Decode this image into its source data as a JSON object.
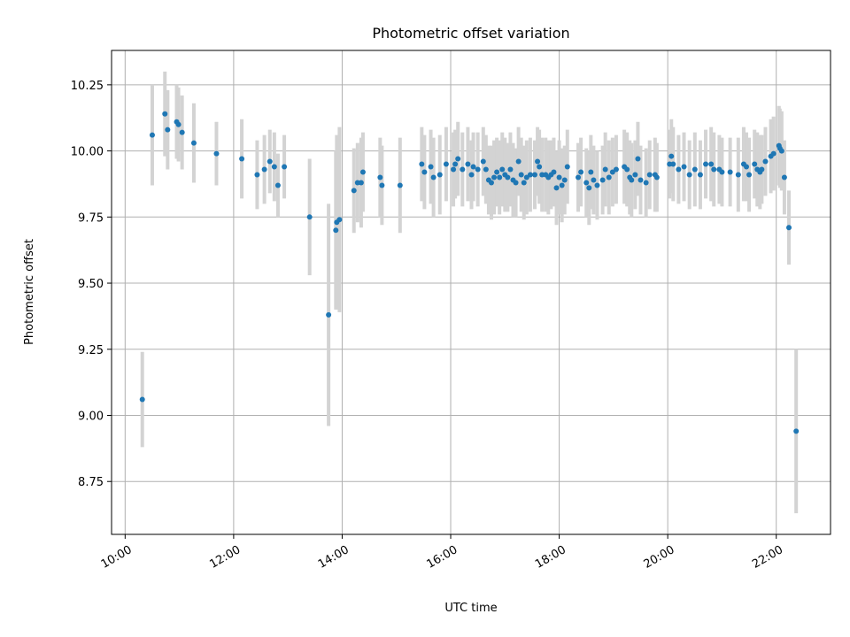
{
  "chart_data": {
    "type": "scatter",
    "title": "Photometric offset variation",
    "xlabel": "UTC time",
    "ylabel": "Photometric offset",
    "x_axis": {
      "kind": "time",
      "range_hours": [
        9.75,
        23.0
      ],
      "ticks": [
        {
          "h": 10,
          "label": "10:00"
        },
        {
          "h": 12,
          "label": "12:00"
        },
        {
          "h": 14,
          "label": "14:00"
        },
        {
          "h": 16,
          "label": "16:00"
        },
        {
          "h": 18,
          "label": "18:00"
        },
        {
          "h": 20,
          "label": "20:00"
        },
        {
          "h": 22,
          "label": "22:00"
        }
      ]
    },
    "y_axis": {
      "range": [
        8.55,
        10.38
      ],
      "ticks": [
        {
          "v": 8.75,
          "label": "8.75"
        },
        {
          "v": 9.0,
          "label": "9.00"
        },
        {
          "v": 9.25,
          "label": "9.25"
        },
        {
          "v": 9.5,
          "label": "9.50"
        },
        {
          "v": 9.75,
          "label": "9.75"
        },
        {
          "v": 10.0,
          "label": "10.00"
        },
        {
          "v": 10.25,
          "label": "10.25"
        }
      ]
    },
    "grid": true,
    "colors": {
      "point": "#1f77b4",
      "errorbar": "#d3d3d3",
      "grid": "#b0b0b0"
    },
    "series": [
      {
        "points": [
          [
            "10:19",
            9.06,
            0.18
          ],
          [
            "10:30",
            10.06,
            0.19
          ],
          [
            "10:44",
            10.14,
            0.16
          ],
          [
            "10:47",
            10.08,
            0.15
          ],
          [
            "10:57",
            10.11,
            0.14
          ],
          [
            "10:59",
            10.1,
            0.14
          ],
          [
            "11:03",
            10.07,
            0.14
          ],
          [
            "11:16",
            10.03,
            0.15
          ],
          [
            "11:41",
            9.99,
            0.12
          ],
          [
            "12:09",
            9.97,
            0.15
          ],
          [
            "12:26",
            9.91,
            0.13
          ],
          [
            "12:34",
            9.93,
            0.13
          ],
          [
            "12:40",
            9.96,
            0.12
          ],
          [
            "12:45",
            9.94,
            0.13
          ],
          [
            "12:49",
            9.87,
            0.12
          ],
          [
            "12:56",
            9.94,
            0.12
          ],
          [
            "13:24",
            9.75,
            0.22
          ],
          [
            "13:45",
            9.38,
            0.42
          ],
          [
            "13:53",
            9.7,
            0.3
          ],
          [
            "13:54",
            9.73,
            0.33
          ],
          [
            "13:57",
            9.74,
            0.35
          ],
          [
            "14:13",
            9.85,
            0.16
          ],
          [
            "14:17",
            9.88,
            0.15
          ],
          [
            "14:21",
            9.88,
            0.17
          ],
          [
            "14:23",
            9.92,
            0.15
          ],
          [
            "14:42",
            9.9,
            0.15
          ],
          [
            "14:44",
            9.87,
            0.15
          ],
          [
            "15:04",
            9.87,
            0.18
          ],
          [
            "15:28",
            9.95,
            0.14
          ],
          [
            "15:31",
            9.92,
            0.14
          ],
          [
            "15:38",
            9.94,
            0.14
          ],
          [
            "15:41",
            9.9,
            0.15
          ],
          [
            "15:48",
            9.91,
            0.15
          ],
          [
            "15:55",
            9.95,
            0.14
          ],
          [
            "16:03",
            9.93,
            0.14
          ],
          [
            "16:05",
            9.95,
            0.13
          ],
          [
            "16:08",
            9.97,
            0.14
          ],
          [
            "16:13",
            9.93,
            0.14
          ],
          [
            "16:19",
            9.95,
            0.14
          ],
          [
            "16:23",
            9.91,
            0.13
          ],
          [
            "16:25",
            9.94,
            0.13
          ],
          [
            "16:30",
            9.93,
            0.14
          ],
          [
            "16:36",
            9.96,
            0.13
          ],
          [
            "16:39",
            9.93,
            0.13
          ],
          [
            "16:42",
            9.89,
            0.13
          ],
          [
            "16:45",
            9.88,
            0.14
          ],
          [
            "16:48",
            9.9,
            0.14
          ],
          [
            "16:51",
            9.92,
            0.13
          ],
          [
            "16:54",
            9.9,
            0.14
          ],
          [
            "16:57",
            9.93,
            0.14
          ],
          [
            "17:00",
            9.91,
            0.14
          ],
          [
            "17:03",
            9.9,
            0.13
          ],
          [
            "17:06",
            9.93,
            0.14
          ],
          [
            "17:09",
            9.89,
            0.14
          ],
          [
            "17:12",
            9.88,
            0.13
          ],
          [
            "17:15",
            9.96,
            0.13
          ],
          [
            "17:18",
            9.91,
            0.14
          ],
          [
            "17:21",
            9.88,
            0.14
          ],
          [
            "17:24",
            9.9,
            0.14
          ],
          [
            "17:28",
            9.91,
            0.14
          ],
          [
            "17:33",
            9.91,
            0.13
          ],
          [
            "17:36",
            9.96,
            0.13
          ],
          [
            "17:38",
            9.94,
            0.14
          ],
          [
            "17:41",
            9.91,
            0.14
          ],
          [
            "17:45",
            9.91,
            0.14
          ],
          [
            "17:48",
            9.9,
            0.14
          ],
          [
            "17:51",
            9.91,
            0.13
          ],
          [
            "17:54",
            9.92,
            0.13
          ],
          [
            "17:57",
            9.86,
            0.14
          ],
          [
            "18:00",
            9.9,
            0.14
          ],
          [
            "18:03",
            9.87,
            0.14
          ],
          [
            "18:06",
            9.89,
            0.13
          ],
          [
            "18:09",
            9.94,
            0.14
          ],
          [
            "18:21",
            9.9,
            0.13
          ],
          [
            "18:24",
            9.92,
            0.13
          ],
          [
            "18:30",
            9.88,
            0.13
          ],
          [
            "18:33",
            9.86,
            0.14
          ],
          [
            "18:35",
            9.92,
            0.14
          ],
          [
            "18:38",
            9.89,
            0.13
          ],
          [
            "18:42",
            9.87,
            0.13
          ],
          [
            "18:48",
            9.89,
            0.13
          ],
          [
            "18:51",
            9.93,
            0.14
          ],
          [
            "18:55",
            9.9,
            0.14
          ],
          [
            "18:59",
            9.92,
            0.13
          ],
          [
            "19:03",
            9.93,
            0.13
          ],
          [
            "19:12",
            9.94,
            0.14
          ],
          [
            "19:15",
            9.93,
            0.14
          ],
          [
            "19:18",
            9.9,
            0.14
          ],
          [
            "19:20",
            9.89,
            0.14
          ],
          [
            "19:24",
            9.91,
            0.13
          ],
          [
            "19:27",
            9.97,
            0.14
          ],
          [
            "19:30",
            9.89,
            0.13
          ],
          [
            "19:36",
            9.88,
            0.13
          ],
          [
            "19:40",
            9.91,
            0.13
          ],
          [
            "19:46",
            9.91,
            0.14
          ],
          [
            "19:48",
            9.9,
            0.13
          ],
          [
            "20:02",
            9.95,
            0.13
          ],
          [
            "20:04",
            9.98,
            0.14
          ],
          [
            "20:06",
            9.95,
            0.14
          ],
          [
            "20:12",
            9.93,
            0.13
          ],
          [
            "20:18",
            9.94,
            0.13
          ],
          [
            "20:24",
            9.91,
            0.13
          ],
          [
            "20:30",
            9.93,
            0.14
          ],
          [
            "20:36",
            9.91,
            0.13
          ],
          [
            "20:42",
            9.95,
            0.13
          ],
          [
            "20:48",
            9.95,
            0.14
          ],
          [
            "20:51",
            9.93,
            0.14
          ],
          [
            "20:57",
            9.93,
            0.13
          ],
          [
            "21:00",
            9.92,
            0.13
          ],
          [
            "21:09",
            9.92,
            0.13
          ],
          [
            "21:18",
            9.91,
            0.14
          ],
          [
            "21:24",
            9.95,
            0.14
          ],
          [
            "21:27",
            9.94,
            0.13
          ],
          [
            "21:30",
            9.91,
            0.14
          ],
          [
            "21:36",
            9.95,
            0.13
          ],
          [
            "21:39",
            9.93,
            0.14
          ],
          [
            "21:42",
            9.92,
            0.14
          ],
          [
            "21:44",
            9.93,
            0.13
          ],
          [
            "21:48",
            9.96,
            0.13
          ],
          [
            "21:54",
            9.98,
            0.14
          ],
          [
            "21:57",
            9.99,
            0.14
          ],
          [
            "22:03",
            10.02,
            0.15
          ],
          [
            "22:04",
            10.01,
            0.15
          ],
          [
            "22:06",
            10.0,
            0.15
          ],
          [
            "22:09",
            9.9,
            0.14
          ],
          [
            "22:14",
            9.71,
            0.14
          ],
          [
            "22:22",
            8.94,
            0.31
          ]
        ]
      }
    ]
  }
}
